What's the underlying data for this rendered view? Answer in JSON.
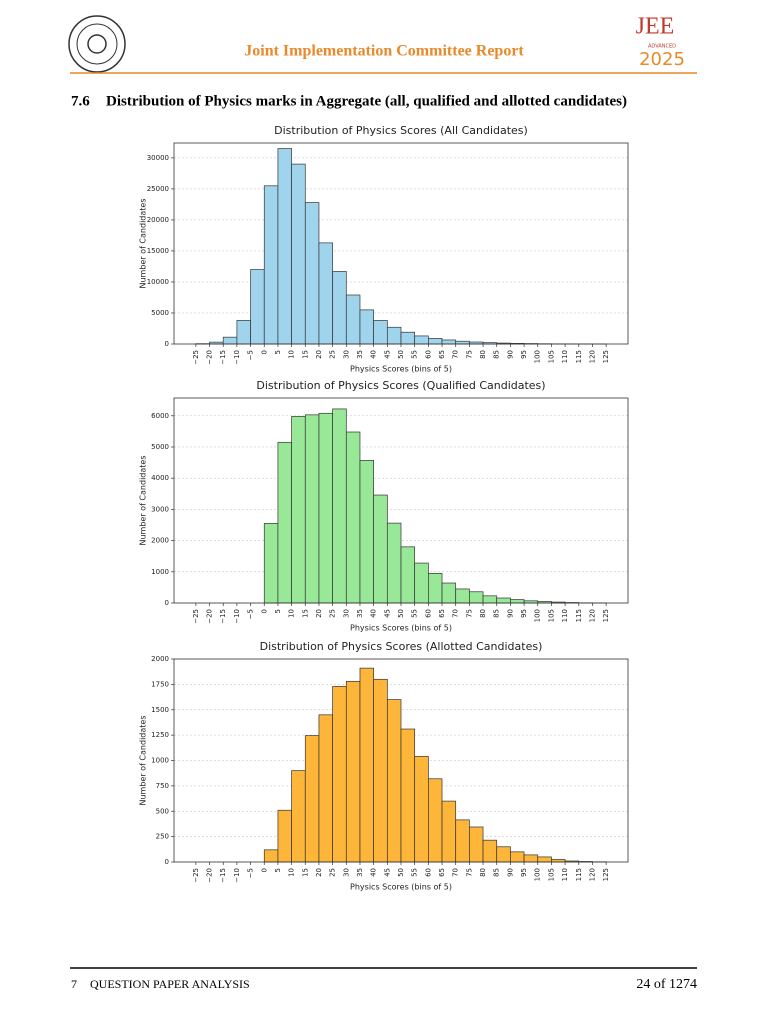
{
  "header": {
    "title": "Joint Implementation Committee Report",
    "logo_main": "JEE",
    "logo_sub": "ADVANCED",
    "logo_year": "2025"
  },
  "section": {
    "number": "7.6",
    "title": "Distribution of Physics marks in Aggregate (all, qualified and allotted candidates)"
  },
  "footer": {
    "chapter_number": "7",
    "chapter_title": "QUESTION PAPER ANALYSIS",
    "page": "24 of 1274"
  },
  "chart_data": [
    {
      "type": "histogram",
      "title": "Distribution of Physics Scores (All Candidates)",
      "x_label": "Physics Scores (bins of 5)",
      "y_label": "Number of Candidates",
      "color": "#9fd4ec",
      "grid": true,
      "bins": [
        -25,
        -20,
        -15,
        -10,
        -5,
        0,
        5,
        10,
        15,
        20,
        25,
        30,
        35,
        40,
        45,
        50,
        55,
        60,
        65,
        70,
        75,
        80,
        85,
        90,
        95,
        100,
        105,
        110,
        115,
        120,
        125
      ],
      "values": [
        50,
        300,
        1100,
        3800,
        12000,
        25500,
        31500,
        29000,
        22800,
        16300,
        11700,
        7900,
        5500,
        3800,
        2700,
        1900,
        1300,
        900,
        650,
        450,
        320,
        220,
        150,
        100,
        70,
        40,
        25,
        15,
        8,
        3
      ],
      "xlim": [
        -33,
        133
      ],
      "ylim": [
        0,
        32400
      ],
      "xticks": [
        {
          "value": -25,
          "label": "−25"
        },
        {
          "value": -20,
          "label": "−20"
        },
        {
          "value": -15,
          "label": "−15"
        },
        {
          "value": -10,
          "label": "−10"
        },
        {
          "value": -5,
          "label": "−5"
        },
        0,
        5,
        10,
        15,
        20,
        25,
        30,
        35,
        40,
        45,
        50,
        55,
        60,
        65,
        70,
        75,
        80,
        85,
        90,
        95,
        100,
        105,
        110,
        115,
        120,
        125
      ],
      "yticks": [
        0,
        5000,
        10000,
        15000,
        20000,
        25000,
        30000
      ]
    },
    {
      "type": "histogram",
      "title": "Distribution of Physics Scores (Qualified Candidates)",
      "x_label": "Physics Scores (bins of 5)",
      "y_label": "Number of Candidates",
      "color": "#98e898",
      "grid": true,
      "bins": [
        0,
        5,
        10,
        15,
        20,
        25,
        30,
        35,
        40,
        45,
        50,
        55,
        60,
        65,
        70,
        75,
        80,
        85,
        90,
        95,
        100,
        105,
        110,
        115,
        120,
        125
      ],
      "values": [
        2550,
        5150,
        5980,
        6030,
        6080,
        6220,
        5480,
        4570,
        3460,
        2560,
        1800,
        1280,
        950,
        640,
        450,
        360,
        230,
        160,
        110,
        70,
        50,
        30,
        15,
        5,
        2
      ],
      "xlim": [
        -33,
        133
      ],
      "ylim": [
        0,
        6570
      ],
      "xticks": [
        {
          "value": -25,
          "label": "−25"
        },
        {
          "value": -20,
          "label": "−20"
        },
        {
          "value": -15,
          "label": "−15"
        },
        {
          "value": -10,
          "label": "−10"
        },
        {
          "value": -5,
          "label": "−5"
        },
        0,
        5,
        10,
        15,
        20,
        25,
        30,
        35,
        40,
        45,
        50,
        55,
        60,
        65,
        70,
        75,
        80,
        85,
        90,
        95,
        100,
        105,
        110,
        115,
        120,
        125
      ],
      "yticks": [
        0,
        1000,
        2000,
        3000,
        4000,
        5000,
        6000
      ]
    },
    {
      "type": "histogram",
      "title": "Distribution of Physics Scores (Allotted Candidates)",
      "x_label": "Physics Scores (bins of 5)",
      "y_label": "Number of Candidates",
      "color": "#fdb53a",
      "grid": true,
      "bins": [
        0,
        5,
        10,
        15,
        20,
        25,
        30,
        35,
        40,
        45,
        50,
        55,
        60,
        65,
        70,
        75,
        80,
        85,
        90,
        95,
        100,
        105,
        110,
        115,
        120,
        125
      ],
      "values": [
        120,
        510,
        900,
        1245,
        1450,
        1730,
        1780,
        1910,
        1800,
        1600,
        1310,
        1040,
        820,
        600,
        415,
        345,
        215,
        150,
        100,
        70,
        50,
        25,
        10,
        5,
        2
      ],
      "xlim": [
        -33,
        133
      ],
      "ylim": [
        0,
        2000
      ],
      "xticks": [
        {
          "value": -25,
          "label": "−25"
        },
        {
          "value": -20,
          "label": "−20"
        },
        {
          "value": -15,
          "label": "−15"
        },
        {
          "value": -10,
          "label": "−10"
        },
        {
          "value": -5,
          "label": "−5"
        },
        0,
        5,
        10,
        15,
        20,
        25,
        30,
        35,
        40,
        45,
        50,
        55,
        60,
        65,
        70,
        75,
        80,
        85,
        90,
        95,
        100,
        105,
        110,
        115,
        120,
        125
      ],
      "yticks": [
        0,
        250,
        500,
        750,
        1000,
        1250,
        1500,
        1750,
        2000
      ]
    }
  ]
}
